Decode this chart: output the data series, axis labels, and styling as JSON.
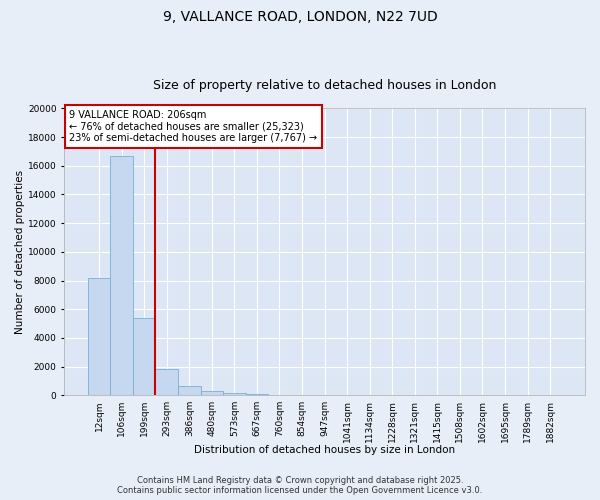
{
  "title": "9, VALLANCE ROAD, LONDON, N22 7UD",
  "subtitle": "Size of property relative to detached houses in London",
  "xlabel": "Distribution of detached houses by size in London",
  "ylabel": "Number of detached properties",
  "categories": [
    "12sqm",
    "106sqm",
    "199sqm",
    "293sqm",
    "386sqm",
    "480sqm",
    "573sqm",
    "667sqm",
    "760sqm",
    "854sqm",
    "947sqm",
    "1041sqm",
    "1134sqm",
    "1228sqm",
    "1321sqm",
    "1415sqm",
    "1508sqm",
    "1602sqm",
    "1695sqm",
    "1789sqm",
    "1882sqm"
  ],
  "values": [
    8200,
    16700,
    5400,
    1800,
    650,
    300,
    175,
    100,
    50,
    30,
    15,
    10,
    7,
    5,
    4,
    3,
    2,
    2,
    1,
    1,
    1
  ],
  "bar_color": "#c5d8f0",
  "bar_edge_color": "#7aafd4",
  "red_line_index": 2,
  "annotation_text": "9 VALLANCE ROAD: 206sqm\n← 76% of detached houses are smaller (25,323)\n23% of semi-detached houses are larger (7,767) →",
  "annotation_box_color": "#ffffff",
  "annotation_border_color": "#cc0000",
  "ylim": [
    0,
    20000
  ],
  "yticks": [
    0,
    2000,
    4000,
    6000,
    8000,
    10000,
    12000,
    14000,
    16000,
    18000,
    20000
  ],
  "red_line_color": "#cc0000",
  "footer_text": "Contains HM Land Registry data © Crown copyright and database right 2025.\nContains public sector information licensed under the Open Government Licence v3.0.",
  "background_color": "#e8eef7",
  "plot_background_color": "#dce6f5",
  "grid_color": "#ffffff",
  "title_fontsize": 10,
  "subtitle_fontsize": 9,
  "axis_label_fontsize": 7.5,
  "tick_fontsize": 6.5,
  "annotation_fontsize": 7,
  "footer_fontsize": 6
}
